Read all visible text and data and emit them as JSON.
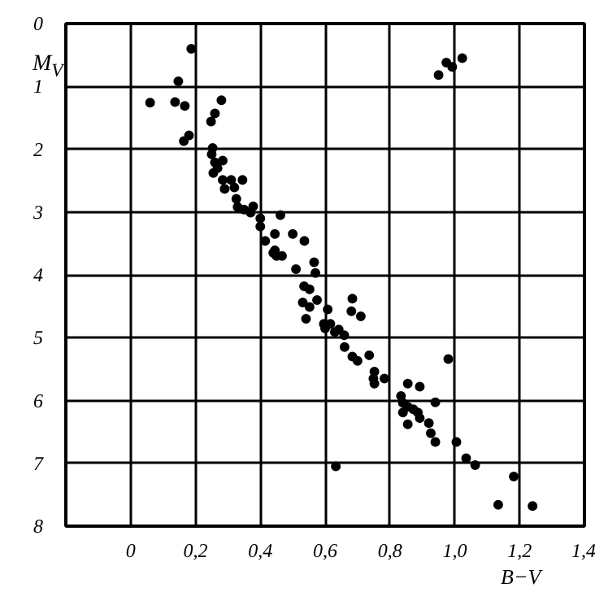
{
  "chart_data": {
    "type": "scatter",
    "xlabel": "B−V",
    "ylabel": "M$_{V}$",
    "xlim": [
      -0.2,
      1.4
    ],
    "ylim": [
      8,
      0
    ],
    "xticks": [
      {
        "value": -0.2,
        "label": null
      },
      {
        "value": 0,
        "label": "0"
      },
      {
        "value": 0.2,
        "label": "0,2"
      },
      {
        "value": 0.4,
        "label": "0,4"
      },
      {
        "value": 0.6,
        "label": "0,6"
      },
      {
        "value": 0.8,
        "label": "0,8"
      },
      {
        "value": 1.0,
        "label": "1,0"
      },
      {
        "value": 1.2,
        "label": "1,2"
      },
      {
        "value": 1.4,
        "label": "1,4"
      }
    ],
    "yticks": [
      0,
      1,
      2,
      3,
      4,
      5,
      6,
      7,
      8
    ],
    "grid": true,
    "marker": "circle",
    "series": [
      {
        "color": "#000000",
        "x": [
          0.187,
          0.147,
          0.06,
          0.137,
          0.167,
          0.28,
          0.26,
          0.248,
          0.18,
          0.164,
          0.253,
          0.25,
          0.284,
          0.26,
          0.268,
          0.255,
          0.284,
          0.31,
          0.345,
          0.29,
          0.32,
          0.326,
          0.33,
          0.35,
          0.378,
          0.37,
          0.4,
          0.462,
          0.4,
          0.445,
          0.5,
          0.536,
          0.415,
          0.44,
          0.45,
          0.467,
          0.445,
          0.566,
          0.51,
          0.57,
          0.535,
          0.552,
          0.684,
          0.531,
          0.552,
          0.575,
          0.681,
          0.608,
          0.71,
          0.541,
          0.596,
          0.616,
          0.6,
          0.642,
          0.63,
          0.659,
          0.66,
          0.684,
          0.7,
          0.736,
          0.98,
          0.752,
          0.749,
          0.752,
          0.783,
          0.855,
          0.892,
          0.834,
          0.84,
          0.855,
          0.94,
          0.872,
          0.886,
          0.84,
          0.892,
          0.855,
          0.92,
          0.926,
          0.94,
          1.005,
          0.633,
          1.035,
          1.063,
          1.182,
          1.134,
          1.24,
          1.023,
          0.974,
          0.992,
          0.95
        ],
        "values": [
          0.4,
          0.92,
          1.26,
          1.25,
          1.31,
          1.22,
          1.43,
          1.56,
          1.78,
          1.87,
          1.98,
          2.08,
          2.18,
          2.21,
          2.3,
          2.38,
          2.49,
          2.49,
          2.49,
          2.63,
          2.61,
          2.79,
          2.92,
          2.96,
          2.91,
          3.01,
          3.1,
          3.05,
          3.23,
          3.35,
          3.35,
          3.46,
          3.46,
          3.65,
          3.7,
          3.7,
          3.61,
          3.8,
          3.91,
          3.97,
          4.18,
          4.23,
          4.38,
          4.44,
          4.51,
          4.4,
          4.58,
          4.55,
          4.66,
          4.7,
          4.78,
          4.78,
          4.85,
          4.87,
          4.91,
          4.96,
          5.15,
          5.3,
          5.37,
          5.28,
          5.34,
          5.54,
          5.65,
          5.73,
          5.65,
          5.73,
          5.78,
          5.93,
          6.04,
          6.1,
          6.03,
          6.14,
          6.19,
          6.19,
          6.28,
          6.38,
          6.36,
          6.52,
          6.66,
          6.66,
          7.05,
          6.92,
          7.03,
          7.21,
          7.66,
          7.68,
          0.55,
          0.62,
          0.69,
          0.82
        ]
      }
    ]
  }
}
